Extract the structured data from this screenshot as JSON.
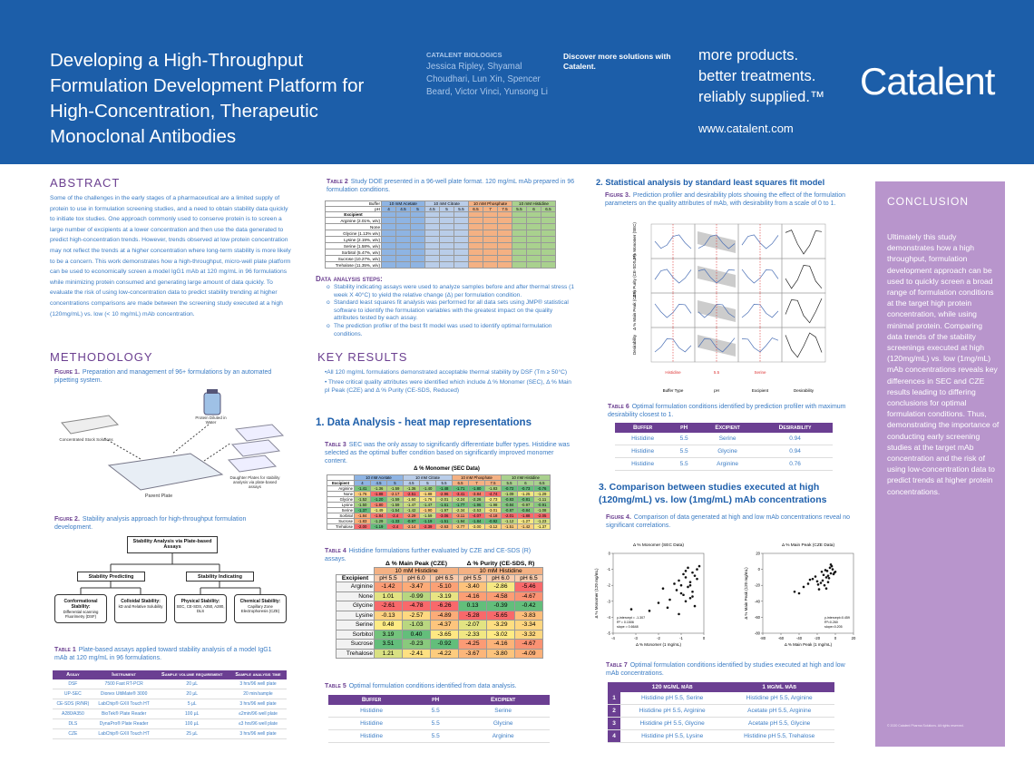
{
  "header": {
    "title": "Developing a High-Throughput Formulation Development Platform for High-Concentration, Therapeutic Monoclonal Antibodies",
    "org": "CATALENT BIOLOGICS",
    "authors": "Jessica Ripley, Shyamal Choudhari, Lun Xin, Spencer Beard, Victor Vinci, Yunsong Li",
    "cta": "Discover more solutions with Catalent.",
    "tagline": [
      "more products.",
      "better treatments.",
      "reliably supplied.™"
    ],
    "url": "www.catalent.com",
    "logo": "Catalent"
  },
  "abstract": {
    "heading": "ABSTRACT",
    "text": "Some of the challenges in the early stages of a pharmaceutical are a limited supply of protein to use in formulation screening studies, and a need to obtain stability data quickly to initiate tox studies. One approach commonly used to conserve protein is to screen a large number of excipients at a lower concentration and then use the data generated to predict high-concentration trends. However, trends observed at low protein concentration may not reflect the trends at a higher concentration where long-term stability is more likely to be a concern. This work demonstrates how a high-throughput, micro-well plate platform can be used to economically screen a model IgG1 mAb at 120 mg/mL in 96 formulations while minimizing protein consumed and generating large amount of data quickly. To evaluate the risk of using low-concentration data to predict stability trending at higher concentrations comparisons are made between the screening study executed at a high (120mg/mL) vs. low (< 10 mg/mL) mAb concentration."
  },
  "methodology": {
    "heading": "METHODOLOGY",
    "figure1": {
      "label": "Figure 1.",
      "caption": "Preparation and management of 96+ formulations by an automated pipetting system.",
      "protein": "Protein Diluted in Water",
      "stock": "Concentrated Stock Solutions",
      "parent": "Parent Plate",
      "daughter": "Daughter Plates for stability analysis via plate-based assays"
    },
    "figure2": {
      "label": "Figure 2.",
      "caption": "Stability analysis approach for high-throughput formulation development.",
      "root": "Stability Analysis via Plate-based Assays",
      "branches": [
        "Stability Predicting",
        "Stability Indicating"
      ],
      "leaves": [
        {
          "title": "Conformational Stability:",
          "detail": "Differential scanning Fluorimetry (DSF)"
        },
        {
          "title": "Colloidal Stability:",
          "detail": "kD and Relative Solubility"
        },
        {
          "title": "Physical Stability:",
          "detail": "SEC, CE-SDS, A350, A280, DLS"
        },
        {
          "title": "Chemical Stability:",
          "detail": "Capillary Zone Electrophoresis (CZE)"
        }
      ]
    }
  },
  "table1": {
    "label": "Table 1",
    "caption": "Plate-based assays applied toward stability analysis of a model IgG1 mAb at 120 mg/mL in 96 formulations.",
    "columns": [
      "Assay",
      "Instrument",
      "Sample volume requirement",
      "Sample analysis time"
    ],
    "rows": [
      [
        "DSF",
        "7500 Fast RT-PCR",
        "20 µL",
        "3 hrs/96 well plate"
      ],
      [
        "UP-SEC",
        "Dionex UltiMate® 3000",
        "20 µL",
        "20 min/sample"
      ],
      [
        "CE-SDS (R/NR)",
        "LabChip® GXII Touch HT",
        "5 µL",
        "3 hrs/96 well plate"
      ],
      [
        "A280/A350",
        "BioTek® Plate Reader",
        "100 µL",
        "≤2min/96 well plate"
      ],
      [
        "DLS",
        "DynaPro® Plate Reader",
        "100 µL",
        "≤3 hrs/96 well plate"
      ],
      [
        "CZE",
        "LabChip® GXII Touch HT",
        "25 µL",
        "3 hrs/96 well plate"
      ]
    ]
  },
  "table2": {
    "label": "Table 2",
    "caption": "Study DOE presented in a 96-well plate format. 120 mg/mL mAb prepared in 96 formulation conditions.",
    "buffer_label": "Buffer",
    "ph_label": "pH",
    "excipient_label": "Excipient",
    "buffers": [
      "10 mM Acetate",
      "10 mM Citrate",
      "10 mM Phosphate",
      "10 mM Histidine"
    ],
    "buffer_colors": [
      "#8eb4e3",
      "#b9cde9",
      "#f4b183",
      "#a9d18e"
    ],
    "ph": [
      "4",
      "4.5",
      "5",
      "4.5",
      "5",
      "5.5",
      "6.5",
      "7",
      "7.5",
      "5.5",
      "6",
      "6.5"
    ],
    "excipients": [
      "Arginine (2.01%, w/v)",
      "None",
      "Glycine (1.13% w/v)",
      "Lysine (2.19%, w/v)",
      "Serine (1.58%, w/v)",
      "Sorbitol (5.47%, w/v)",
      "Sucrose (10.27%, w/v)",
      "Trehalose (11.35%, w/v)"
    ]
  },
  "data_steps": {
    "heading": "Data analysis steps:",
    "items": [
      "Stability indicating assays were used to analyze samples before and after thermal stress (1 week X 40°C) to yield the relative change (Δ) per formulation condition.",
      "Standard least squares fit analysis was performed for all data sets using JMP® statistical software to identify the formulation variables with the greatest impact on the quality attributes tested by each assay.",
      "The prediction profiler of the best fit model was used to identify optimal formulation conditions."
    ]
  },
  "key_results": {
    "heading": "KEY RESULTS",
    "items": [
      "•All 120 mg/mL formulations  demonstrated acceptable thermal stability by DSF (Tm ≥ 50°C)",
      "• Three critical quality attributes were identified which include  Δ % Monomer (SEC), Δ % Main pI Peak (CZE) and Δ % Purity (CE-SDS, Reduced)"
    ]
  },
  "section1": {
    "heading": "1. Data Analysis - heat map representations",
    "table3": {
      "label": "Table 3",
      "caption": "SEC was the only assay to significantly differentiate buffer types. Histidine was selected as the optimal buffer condition based on significantly improved monomer content.",
      "title": "Δ % Monomer (SEC Data)",
      "excipient_label": "Excipient",
      "excipients": [
        "Arginine",
        "None",
        "Glycine",
        "Lysine",
        "Serine",
        "Sorbitol",
        "Sucrose",
        "Trehalose"
      ],
      "values": [
        [
          "-1.41",
          "-1.36",
          "-1.59",
          "-1.36",
          "-1.40",
          "-1.48",
          "-1.71",
          "-1.80",
          "-1.83",
          "-0.72",
          "-0.73",
          "-0.76"
        ],
        [
          "-1.76",
          "-1.88",
          "-2.17",
          "-2.51",
          "-1.88",
          "-2.96",
          "-3.41",
          "-3.84",
          "-4.74",
          "-1.09",
          "-1.25",
          "-1.29"
        ],
        [
          "-1.52",
          "-1.20",
          "-1.59",
          "-1.60",
          "-1.76",
          "-2.01",
          "-2.24",
          "-2.26",
          "-2.73",
          "-0.83",
          "-0.81",
          "-1.11"
        ],
        [
          "-1.50",
          "-1.80",
          "-1.59",
          "-1.47",
          "-1.47",
          "-1.61",
          "-1.77",
          "-1.96",
          "-1.98",
          "-0.84",
          "-0.97",
          "-0.91"
        ],
        [
          "-1.37",
          "-1.49",
          "-1.54",
          "-1.42",
          "-1.90",
          "-1.97",
          "-2.34",
          "-2.53",
          "-3.01",
          "-0.87",
          "-0.84",
          "-1.08"
        ],
        [
          "-1.84",
          "-1.84",
          "-2.4",
          "-2.29",
          "-1.59",
          "-3.06",
          "-3.11",
          "-4.07",
          "-4.18",
          "-2.01",
          "-1.88",
          "-2.05"
        ],
        [
          "-1.83",
          "-1.29",
          "-1.33",
          "-0.97",
          "-1.19",
          "-1.51",
          "-1.94",
          "-1.84",
          "-0.92",
          "-1.12",
          "-1.27",
          "-1.23"
        ],
        [
          "-2.00",
          "-1.19",
          "-2.4",
          "-2.14",
          "-2.39",
          "-2.63",
          "-2.77",
          "-3.00",
          "-3.12",
          "-1.51",
          "-1.42",
          "-1.37"
        ]
      ]
    },
    "table4": {
      "label": "Table 4",
      "caption": "Histidine formulations further evaluated by CZE and CE-SDS (R) assays.",
      "groups": [
        "Δ % Main Peak (CZE)",
        "Δ % Purity (CE-SDS, R)"
      ],
      "buffer": "10 mM Histidine",
      "ph": [
        "pH 5.5",
        "pH 6.0",
        "pH 6.5"
      ],
      "excipient_label": "Excipient",
      "excipients": [
        "Arginine",
        "None",
        "Glycine",
        "Lysine",
        "Serine",
        "Sorbitol",
        "Sucrose",
        "Trehalose"
      ],
      "values": [
        [
          "-1.42",
          "-3.47",
          "-5.10",
          "-3.40",
          "-2.86",
          "-5.46"
        ],
        [
          "1.01",
          "-0.99",
          "-3.19",
          "-4.16",
          "-4.58",
          "-4.67"
        ],
        [
          "-2.61",
          "-4.78",
          "-6.26",
          "0.13",
          "-0.39",
          "-0.42"
        ],
        [
          "-0.13",
          "-2.57",
          "-4.89",
          "-5.28",
          "-5.65",
          "-3.83"
        ],
        [
          "0.48",
          "-1.03",
          "-4.37",
          "-2.07",
          "-3.29",
          "-3.34"
        ],
        [
          "3.19",
          "0.40",
          "-3.65",
          "-2.33",
          "-3.02",
          "-3.32"
        ],
        [
          "3.51",
          "-0.23",
          "-0.92",
          "-4.25",
          "-4.16",
          "-4.67"
        ],
        [
          "1.21",
          "-2.41",
          "-4.22",
          "-3.67",
          "-3.80",
          "-4.09"
        ]
      ]
    },
    "table5": {
      "label": "Table 5",
      "caption": "Optimal formulation conditions identified from data analysis.",
      "columns": [
        "Buffer",
        "pH",
        "Excipient"
      ],
      "rows": [
        [
          "Histidine",
          "5.5",
          "Serine"
        ],
        [
          "Histidine",
          "5.5",
          "Glycine"
        ],
        [
          "Histidine",
          "5.5",
          "Arginine"
        ]
      ]
    }
  },
  "section2": {
    "heading": "2. Statistical analysis by standard least squares fit model",
    "figure3": {
      "label": "Figure 3.",
      "caption": "Prediction profiler and desirability plots showing the effect of the formulation parameters on the quality attributes of mAb, with desirability from a scale of 0 to 1.",
      "y_labels": [
        "Δ % Monomer (SEC)",
        "Δ % Purity (CE-SDS, R)",
        "Δ % Main Peak (CZE)",
        "Desirability"
      ],
      "x_labels": [
        "Buffer Type",
        "pH",
        "Excipient",
        "Desirability"
      ],
      "current": [
        "Histidine",
        "5.5",
        "Serine"
      ]
    },
    "table6": {
      "label": "Table 6",
      "caption": "Optimal formulation conditions identified by prediction profiler with maximum desirability closest to 1.",
      "columns": [
        "Buffer",
        "pH",
        "Excipient",
        "Desirability"
      ],
      "rows": [
        [
          "Histidine",
          "5.5",
          "Serine",
          "0.94"
        ],
        [
          "Histidine",
          "5.5",
          "Glycine",
          "0.94"
        ],
        [
          "Histidine",
          "5.5",
          "Arginine",
          "0.76"
        ]
      ]
    }
  },
  "section3": {
    "heading": "3. Comparison between studies executed at high (120mg/mL) vs. low (1mg/mL) mAb concentrations",
    "figure4": {
      "label": "Figure 4.",
      "caption": "Comparison of data generated at high and low mAb concentrations reveal no significant correlations.",
      "plots": [
        {
          "title": "Δ % Monomer (SEC Data)",
          "xlabel": "Δ % Monomer (1 mg/mL)",
          "ylabel": "Δ % Monomer (120 mg/mL)",
          "xlim": [
            -4,
            0
          ],
          "ylim": [
            -5,
            0
          ],
          "xticks": [
            -4,
            -3,
            -2,
            -1,
            0
          ],
          "yticks": [
            -5,
            -4,
            -3,
            -2,
            -1,
            0
          ],
          "annotation": [
            "y-intercept = -1.307",
            "R² = 0.1506",
            "slope = 0.6648"
          ],
          "x": [
            -0.5,
            -0.8,
            -1.0,
            -1.2,
            -0.3,
            -0.6,
            -0.9,
            -1.5,
            -0.4,
            -0.7,
            -1.1,
            -0.2,
            -0.5,
            -0.8,
            -1.3,
            -0.6,
            -0.9,
            -0.4,
            -1.0,
            -0.7,
            -2.0,
            -2.4,
            -1.8,
            -0.3,
            -0.5,
            -1.6,
            -0.8,
            -1.1,
            -0.6,
            -3.2
          ],
          "y": [
            -1.2,
            -1.5,
            -2.0,
            -2.3,
            -1.0,
            -1.8,
            -2.6,
            -2.9,
            -1.4,
            -2.1,
            -1.7,
            -0.8,
            -2.4,
            -3.0,
            -1.9,
            -2.8,
            -1.3,
            -3.3,
            -2.5,
            -0.9,
            -3.1,
            -3.6,
            -2.2,
            -1.6,
            -2.7,
            -3.4,
            -1.1,
            -3.8,
            -2.0,
            -3.5
          ]
        },
        {
          "title": "Δ % Main Peak (CZE Data)",
          "xlabel": "Δ % Main Peak (1 mg/mL)",
          "ylabel": "Δ % Main Peak (120 mg/mL)",
          "xlim": [
            -80,
            20
          ],
          "ylim": [
            -80,
            20
          ],
          "xticks": [
            -80,
            -60,
            -40,
            -20,
            0,
            20
          ],
          "yticks": [
            -80,
            -60,
            -40,
            -20,
            0,
            20
          ],
          "annotation": [
            "y-intercept=0.459",
            "R²=0.260",
            "slope=0.205"
          ],
          "x": [
            -5,
            -10,
            -15,
            -20,
            -3,
            -8,
            -12,
            -25,
            -30,
            -6,
            -2,
            -18,
            -9,
            -14,
            -4,
            -22,
            -35,
            -7,
            -11,
            -1,
            -16,
            -40,
            -13,
            -28,
            -5,
            -19,
            0,
            -8,
            -45,
            -10
          ],
          "y": [
            -5,
            -10,
            -3,
            -15,
            0,
            -8,
            -20,
            -12,
            -18,
            2,
            -6,
            -25,
            -2,
            -14,
            4,
            -9,
            -22,
            -11,
            -1,
            -4,
            -17,
            -30,
            -7,
            -13,
            6,
            -19,
            -3,
            -16,
            -28,
            -24
          ]
        }
      ]
    },
    "table7": {
      "label": "Table 7",
      "caption": "Optimal formulation conditions identified by studies executed at high and low mAb concentrations.",
      "columns": [
        "120 mg/mL mAb",
        "1 mg/mL mAb"
      ],
      "rows": [
        [
          "1",
          "Histidine pH 5.5, Serine",
          "Histidine pH 5.5, Arginine"
        ],
        [
          "2",
          "Histidine pH 5.5, Arginine",
          "Acetate pH 5.5, Arginine"
        ],
        [
          "3",
          "Histidine pH 5.5, Glycine",
          "Acetate pH 5.5, Glycine"
        ],
        [
          "4",
          "Histidine pH 5.5, Lysine",
          "Histidine pH 5.5, Trehalose"
        ]
      ]
    }
  },
  "conclusion": {
    "heading": "CONCLUSION",
    "text": "Ultimately this study demonstrates how a high throughput, formulation development approach can be used to quickly screen a broad range of formulation conditions at the target high protein concentration, while using minimal protein. Comparing data trends of the stability screenings executed at high (120mg/mL) vs. low (1mg/mL) mAb concentrations reveals key differences in SEC and CZE results leading to differing conclusions for optimal formulation conditions. Thus, demonstrating the importance of conducting early screening studies at the target mAb concentration and the risk of using low-concentration data to predict trends at higher protein concentrations.",
    "copyright": "© 2020 Catalent Pharma Solutions. All rights reserved."
  }
}
